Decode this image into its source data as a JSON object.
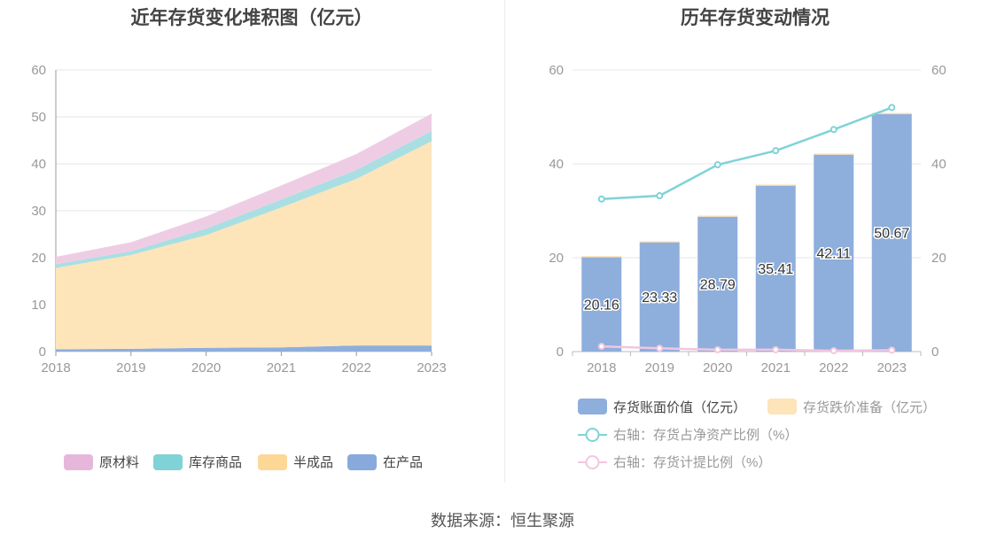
{
  "left_chart": {
    "title": "近年存货变化堆积图（亿元）"
  },
  "right_chart": {
    "title": "历年存货变动情况"
  },
  "source": "数据来源：恒生聚源",
  "chart_data": [
    {
      "type": "area",
      "stacked": true,
      "title": "近年存货变化堆积图（亿元）",
      "x": [
        "2018",
        "2019",
        "2020",
        "2021",
        "2022",
        "2023"
      ],
      "ylim": [
        0,
        60
      ],
      "yticks": [
        0,
        10,
        20,
        30,
        40,
        50,
        60
      ],
      "grid": true,
      "legend_position": "bottom",
      "series": [
        {
          "name": "在产品",
          "color": "#8eaedc",
          "values": [
            0.5,
            0.6,
            0.8,
            0.9,
            1.3,
            1.3
          ]
        },
        {
          "name": "半成品",
          "color": "#fde4b9",
          "values": [
            17.3,
            20.0,
            24.0,
            29.8,
            35.5,
            43.5
          ]
        },
        {
          "name": "库存商品",
          "color": "#a9dfe2",
          "values": [
            0.8,
            0.8,
            1.4,
            1.7,
            1.9,
            2.2
          ]
        },
        {
          "name": "原材料",
          "color": "#eecde4",
          "values": [
            1.6,
            1.9,
            2.6,
            3.0,
            3.4,
            3.7
          ]
        }
      ],
      "legend_order": [
        "原材料",
        "库存商品",
        "半成品",
        "在产品"
      ],
      "legend_colors": [
        "#e6b7da",
        "#7fd3d7",
        "#fdd796",
        "#88a9dc"
      ]
    },
    {
      "type": "bar",
      "title": "历年存货变动情况",
      "categories": [
        "2018",
        "2019",
        "2020",
        "2021",
        "2022",
        "2023"
      ],
      "ylim": [
        0,
        60
      ],
      "y2lim": [
        0,
        60
      ],
      "yticks": [
        0,
        20,
        40,
        60
      ],
      "grid": true,
      "legend_position": "bottom",
      "series": [
        {
          "name": "存货账面价值（亿元）",
          "type": "bar",
          "axis": "left",
          "color": "#8eaedc",
          "values": [
            20.16,
            23.33,
            28.79,
            35.41,
            42.11,
            50.67
          ]
        },
        {
          "name": "存货跌价准备（亿元）",
          "type": "bar-stack",
          "axis": "left",
          "color": "#fde4b9",
          "values": [
            0.2,
            0.2,
            0.2,
            0.2,
            0.1,
            0.2
          ]
        },
        {
          "name": "右轴：存货占净资产比例（%）",
          "type": "line",
          "axis": "right",
          "color": "#7fd3d7",
          "values": [
            32.5,
            33.2,
            39.8,
            42.8,
            47.3,
            52.0
          ]
        },
        {
          "name": "右轴：存货计提比例（%）",
          "type": "line",
          "axis": "right",
          "color": "#f2c6e0",
          "values": [
            1.1,
            0.7,
            0.4,
            0.4,
            0.2,
            0.3
          ]
        }
      ],
      "data_labels": [
        "20.16",
        "23.33",
        "28.79",
        "35.41",
        "42.11",
        "50.67"
      ]
    }
  ]
}
